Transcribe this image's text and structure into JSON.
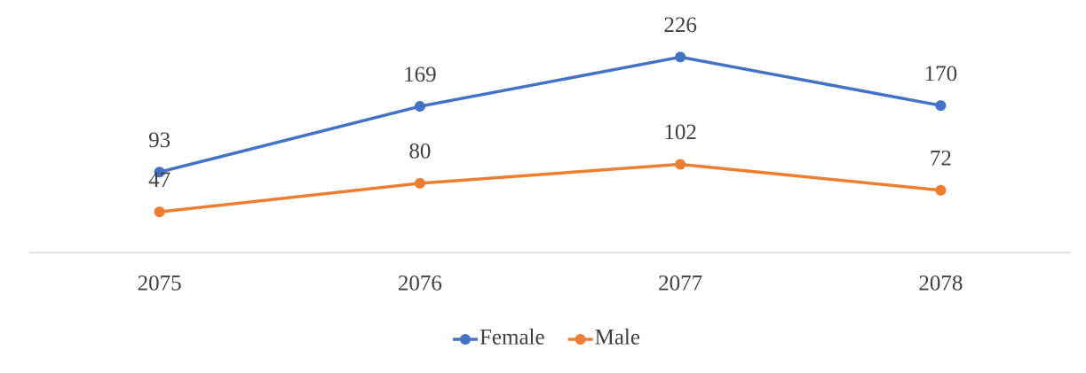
{
  "chart_data": {
    "type": "line",
    "categories": [
      "2075",
      "2076",
      "2077",
      "2078"
    ],
    "series": [
      {
        "name": "Female",
        "color": "#4472c4",
        "values": [
          93,
          169,
          226,
          170
        ]
      },
      {
        "name": "Male",
        "color": "#ed7d31",
        "values": [
          47,
          80,
          102,
          72
        ]
      }
    ],
    "ylim": [
      0,
      250
    ],
    "legend": "bottom"
  }
}
